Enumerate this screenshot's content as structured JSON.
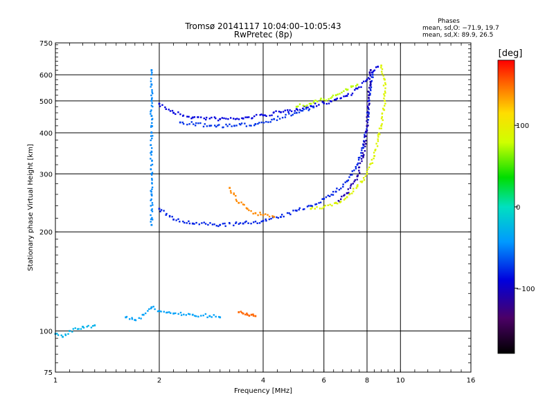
{
  "header": {
    "title": "Tromsø 20141117 10:04:00–10:05:43",
    "subtitle": "RwPretec (8p)"
  },
  "stats": {
    "heading": "Phases",
    "line_o": "mean, sd,O: −71.9, 19.7",
    "line_x": "mean, sd,X:  89.9, 26.5"
  },
  "colorbar": {
    "label": "[deg]",
    "ticks": [
      {
        "value": 100,
        "label": "100"
      },
      {
        "value": 0,
        "label": "0"
      },
      {
        "value": -100,
        "label": "−100"
      }
    ],
    "range": [
      -180,
      180
    ]
  },
  "chart_data": {
    "type": "scatter",
    "title": "Tromsø 20141117 10:04:00–10:05:43",
    "subtitle": "RwPretec (8p)",
    "xlabel": "Frequency [MHz]",
    "ylabel": "Stationary phase Virtual Height [km]",
    "xscale": "log",
    "yscale": "log",
    "xlim": [
      1,
      16
    ],
    "ylim": [
      75,
      750
    ],
    "xticks": [
      1,
      2,
      4,
      6,
      8,
      10,
      16
    ],
    "yticks": [
      75,
      100,
      200,
      300,
      400,
      500,
      600,
      750
    ],
    "grid_x": [
      2,
      4,
      6,
      8,
      10
    ],
    "grid_y": [
      100,
      200,
      300,
      400,
      500,
      600
    ],
    "color_scale": "phase [deg], -180 (black) to 180 (red)",
    "traces": [
      {
        "desc": "F2 high trace",
        "phase": -90,
        "points": [
          [
            2.0,
            490
          ],
          [
            2.2,
            460
          ],
          [
            2.5,
            445
          ],
          [
            3.0,
            440
          ],
          [
            3.5,
            442
          ],
          [
            4.0,
            452
          ],
          [
            4.5,
            462
          ],
          [
            5.0,
            472
          ],
          [
            5.5,
            482
          ],
          [
            6.0,
            492
          ],
          [
            6.5,
            505
          ],
          [
            7.0,
            518
          ],
          [
            7.5,
            545
          ],
          [
            8.0,
            580
          ],
          [
            8.3,
            610
          ],
          [
            8.6,
            635
          ]
        ]
      },
      {
        "desc": "F2 high trace lower edge",
        "phase": -75,
        "points": [
          [
            2.3,
            430
          ],
          [
            2.8,
            420
          ],
          [
            3.3,
            420
          ],
          [
            3.8,
            425
          ],
          [
            4.3,
            440
          ],
          [
            5.0,
            460
          ],
          [
            5.6,
            478
          ]
        ]
      },
      {
        "desc": "F trace",
        "phase": -80,
        "points": [
          [
            2.0,
            235
          ],
          [
            2.2,
            218
          ],
          [
            2.5,
            212
          ],
          [
            3.0,
            210
          ],
          [
            3.5,
            212
          ],
          [
            4.0,
            216
          ],
          [
            4.5,
            222
          ],
          [
            5.0,
            232
          ],
          [
            5.5,
            240
          ],
          [
            6.0,
            252
          ],
          [
            6.5,
            265
          ],
          [
            7.0,
            285
          ],
          [
            7.5,
            320
          ],
          [
            7.8,
            360
          ],
          [
            8.0,
            420
          ],
          [
            8.1,
            500
          ],
          [
            8.2,
            560
          ],
          [
            8.3,
            600
          ]
        ]
      },
      {
        "desc": "O-mode blue trace",
        "phase": -110,
        "points": [
          [
            6.5,
            245
          ],
          [
            7.0,
            262
          ],
          [
            7.5,
            295
          ],
          [
            7.8,
            340
          ],
          [
            8.0,
            420
          ],
          [
            8.1,
            520
          ],
          [
            8.2,
            620
          ]
        ]
      },
      {
        "desc": "X-mode trace",
        "phase": 90,
        "points": [
          [
            5.5,
            235
          ],
          [
            6.0,
            238
          ],
          [
            6.5,
            245
          ],
          [
            7.0,
            255
          ],
          [
            7.5,
            275
          ],
          [
            8.0,
            300
          ],
          [
            8.4,
            340
          ],
          [
            8.8,
            420
          ],
          [
            9.0,
            500
          ],
          [
            9.0,
            580
          ],
          [
            8.8,
            640
          ]
        ]
      },
      {
        "desc": "X-mode high",
        "phase": 75,
        "points": [
          [
            5.0,
            480
          ],
          [
            5.5,
            490
          ],
          [
            6.0,
            505
          ],
          [
            6.5,
            520
          ],
          [
            7.0,
            540
          ],
          [
            7.5,
            560
          ]
        ]
      },
      {
        "desc": "orange trace",
        "phase": 140,
        "points": [
          [
            3.2,
            272
          ],
          [
            3.4,
            245
          ],
          [
            3.6,
            235
          ],
          [
            3.8,
            228
          ],
          [
            4.0,
            225
          ],
          [
            4.3,
            222
          ]
        ]
      },
      {
        "desc": "vertical spread at 1.9 MHz",
        "phase": -50,
        "points": [
          [
            1.9,
            210
          ],
          [
            1.9,
            260
          ],
          [
            1.9,
            300
          ],
          [
            1.9,
            350
          ],
          [
            1.9,
            400
          ],
          [
            1.9,
            450
          ],
          [
            1.9,
            500
          ],
          [
            1.9,
            560
          ],
          [
            1.9,
            620
          ]
        ]
      },
      {
        "desc": "E-region trace",
        "phase": -40,
        "points": [
          [
            1.6,
            110
          ],
          [
            1.7,
            108
          ],
          [
            1.8,
            112
          ],
          [
            1.9,
            118
          ],
          [
            2.0,
            115
          ],
          [
            2.2,
            113
          ],
          [
            2.5,
            112
          ],
          [
            2.8,
            111
          ],
          [
            3.0,
            110
          ]
        ]
      },
      {
        "desc": "low trace",
        "phase": -30,
        "points": [
          [
            1.0,
            98
          ],
          [
            1.05,
            96
          ],
          [
            1.1,
            100
          ],
          [
            1.2,
            103
          ],
          [
            1.3,
            104
          ]
        ]
      },
      {
        "desc": "red points near 3.5 MHz",
        "phase": 150,
        "points": [
          [
            3.4,
            114
          ],
          [
            3.5,
            113
          ],
          [
            3.6,
            112
          ],
          [
            3.7,
            112
          ],
          [
            3.8,
            111
          ]
        ]
      }
    ]
  }
}
